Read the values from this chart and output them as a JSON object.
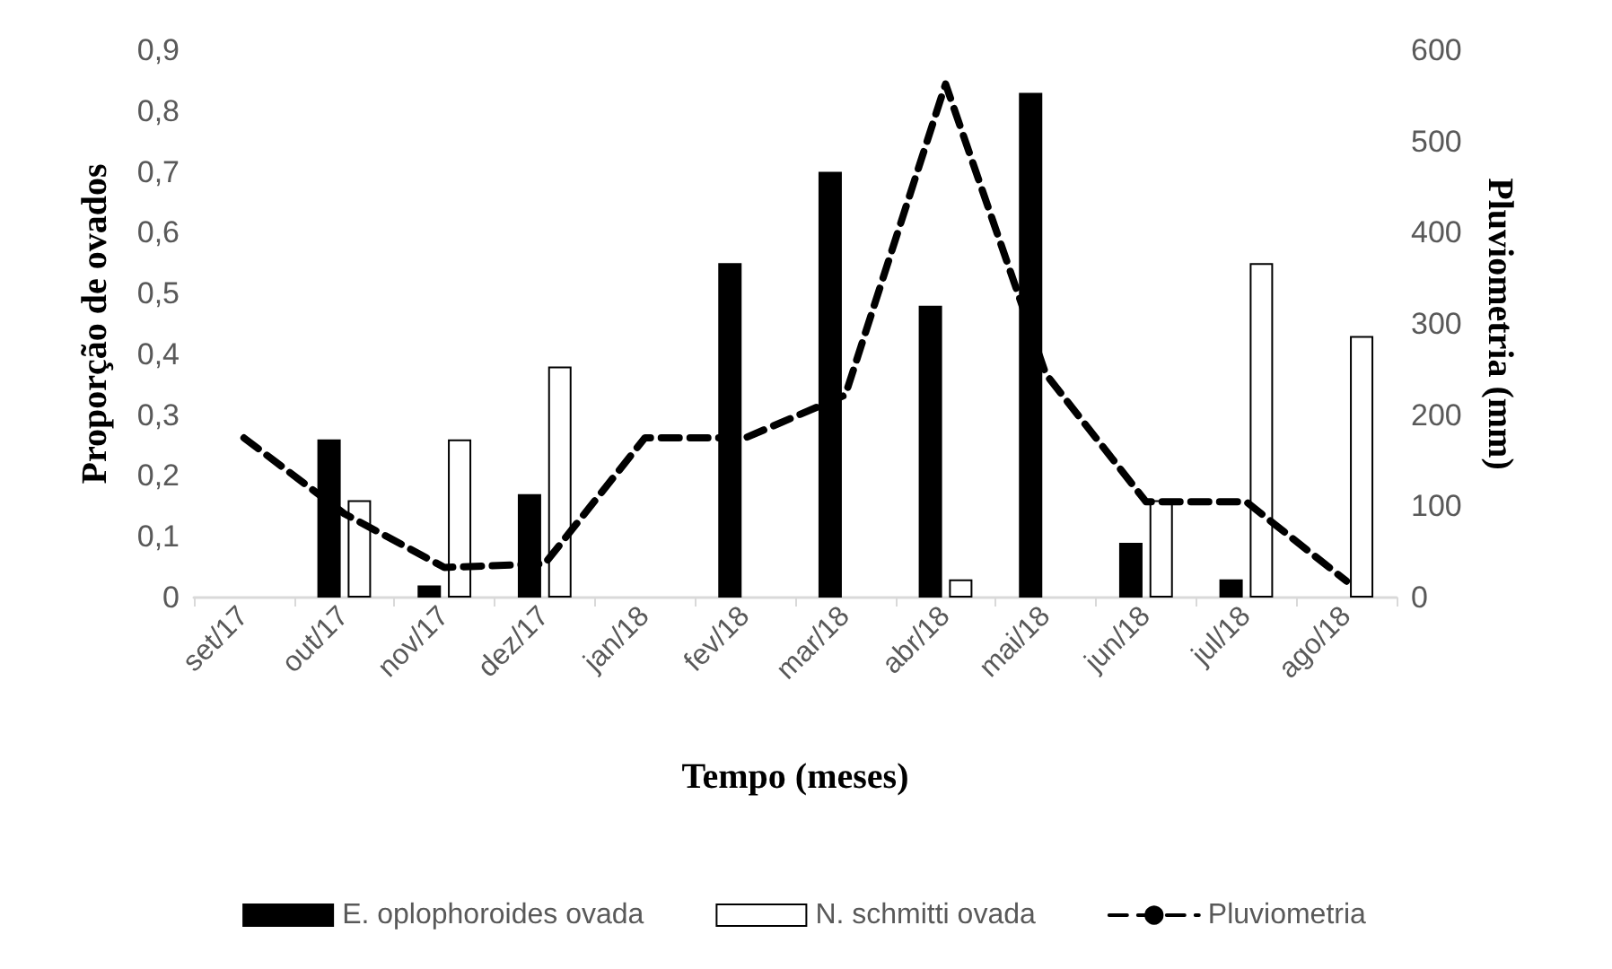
{
  "chart_data": {
    "type": "bar",
    "xlabel": "Tempo (meses)",
    "ylabel": "Proporção de ovados",
    "y2label": "Pluviometria (mm)",
    "categories": [
      "set/17",
      "out/17",
      "nov/17",
      "dez/17",
      "jan/18",
      "fev/18",
      "mar/18",
      "abr/18",
      "mai/18",
      "jun/18",
      "jul/18",
      "ago/18"
    ],
    "series": [
      {
        "name": "E. oplophoroides ovada",
        "color": "#000000",
        "values": [
          null,
          0.26,
          0.02,
          0.17,
          null,
          0.55,
          0.7,
          0.48,
          0.83,
          0.09,
          0.03,
          null
        ]
      },
      {
        "name": "N. schmitti ovada",
        "color": "#ffffff",
        "values": [
          null,
          0.16,
          0.26,
          0.38,
          null,
          null,
          null,
          0.03,
          null,
          0.16,
          0.55,
          0.43
        ]
      },
      {
        "name": "Pluviometria",
        "type": "line",
        "axis": "y2",
        "color": "#000000",
        "line_style": "dashed",
        "marker": "none",
        "values": [
          175,
          92,
          33,
          37,
          175,
          175,
          222,
          563,
          245,
          105,
          105,
          18
        ]
      }
    ],
    "ylim": [
      0,
      0.9
    ],
    "yticks": [
      {
        "value": 0,
        "label": "0"
      },
      {
        "value": 0.1,
        "label": "0,1"
      },
      {
        "value": 0.2,
        "label": "0,2"
      },
      {
        "value": 0.3,
        "label": "0,3"
      },
      {
        "value": 0.4,
        "label": "0,4"
      },
      {
        "value": 0.5,
        "label": "0,5"
      },
      {
        "value": 0.6,
        "label": "0,6"
      },
      {
        "value": 0.7,
        "label": "0,7"
      },
      {
        "value": 0.8,
        "label": "0,8"
      },
      {
        "value": 0.9,
        "label": "0,9"
      }
    ],
    "y2lim": [
      0,
      600
    ],
    "y2ticks": [
      0,
      100,
      200,
      300,
      400,
      500,
      600
    ],
    "grid": false,
    "legend": "bottom"
  }
}
